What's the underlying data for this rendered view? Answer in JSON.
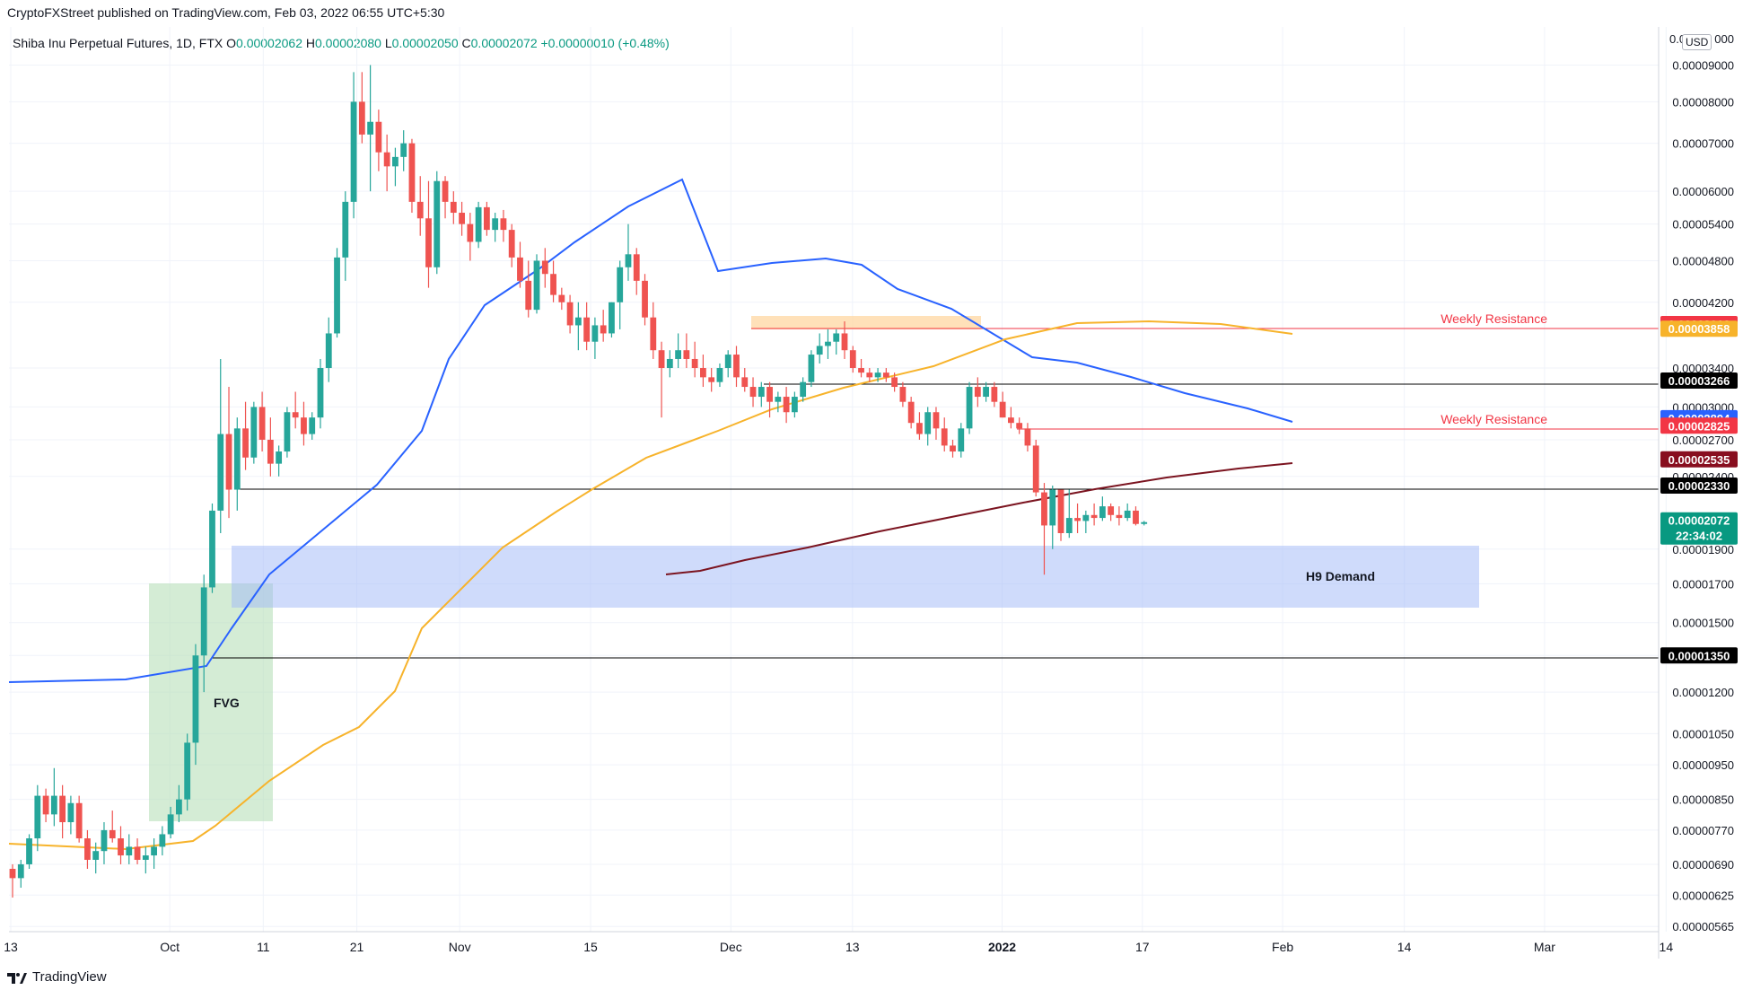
{
  "header": {
    "published": "CryptoFXStreet published on TradingView.com, Feb 03, 2022 06:55 UTC+5:30"
  },
  "legend": {
    "symbol": "Shiba Inu Perpetual Futures, 1D, FTX",
    "o_label": "O",
    "o": "0.00002062",
    "h_label": "H",
    "h": "0.00002080",
    "l_label": "L",
    "l": "0.00002050",
    "c_label": "C",
    "c": "0.00002072",
    "change": "+0.00000010 (+0.48%)"
  },
  "currency": "USD",
  "footer": {
    "brand": "TradingView"
  },
  "chart_data": {
    "type": "candlestick",
    "scale": "log",
    "x_ticks": [
      "13",
      "Oct",
      "11",
      "21",
      "Nov",
      "15",
      "Dec",
      "13",
      "2022",
      "17",
      "Feb",
      "14",
      "Mar",
      "14"
    ],
    "y_ticks": [
      "0.00009000",
      "0.00008000",
      "0.00007000",
      "0.00006000",
      "0.00005400",
      "0.00004800",
      "0.00004200",
      "0.00003400",
      "0.00003000",
      "0.00002700",
      "0.00002400",
      "0.00001900",
      "0.00001700",
      "0.00001500",
      "0.00001350",
      "0.00001200",
      "0.00001050",
      "0.00000950",
      "0.00000850",
      "0.00000770",
      "0.00000690",
      "0.00000625",
      "0.00000565"
    ],
    "y_top_partial": "0.0",
    "y_top_suffix": "000",
    "price_tags": [
      {
        "value": "0.00003916",
        "color": "#f23645"
      },
      {
        "value": "0.00003858",
        "color": "#f7b32b"
      },
      {
        "value": "0.00003266",
        "color": "#000000"
      },
      {
        "value": "0.00002894",
        "color": "#2962ff"
      },
      {
        "value": "0.00002825",
        "color": "#f23645"
      },
      {
        "value": "0.00002535",
        "color": "#880e1f"
      },
      {
        "value": "0.00002330",
        "color": "#000000"
      },
      {
        "value": "0.00001350",
        "color": "#000000"
      }
    ],
    "last_price": {
      "value": "0.00002072",
      "countdown": "22:34:02",
      "color": "#089981"
    },
    "annotations": {
      "weekly_resistance_1": "Weekly Resistance",
      "weekly_resistance_2": "Weekly Resistance",
      "h9_demand": "H9 Demand",
      "fvg": "FVG"
    },
    "moving_averages": [
      {
        "color": "#2962ff"
      },
      {
        "color": "#f7b32b"
      },
      {
        "color": "#7b1420"
      }
    ],
    "candles": [
      [
        6.8,
        6.9,
        6.2,
        6.6
      ],
      [
        6.6,
        7.0,
        6.4,
        6.9
      ],
      [
        6.9,
        7.6,
        6.8,
        7.5
      ],
      [
        7.5,
        8.9,
        7.2,
        8.6
      ],
      [
        8.6,
        8.8,
        7.9,
        8.1
      ],
      [
        8.1,
        9.4,
        7.8,
        8.6
      ],
      [
        8.6,
        8.9,
        7.5,
        7.9
      ],
      [
        7.9,
        8.6,
        7.6,
        8.4
      ],
      [
        8.4,
        8.6,
        7.4,
        7.5
      ],
      [
        7.5,
        7.7,
        6.8,
        7.0
      ],
      [
        7.0,
        7.4,
        6.7,
        7.2
      ],
      [
        7.2,
        7.9,
        6.9,
        7.7
      ],
      [
        7.7,
        8.2,
        7.4,
        7.5
      ],
      [
        7.5,
        7.8,
        6.9,
        7.1
      ],
      [
        7.1,
        7.6,
        6.9,
        7.3
      ],
      [
        7.3,
        7.5,
        6.9,
        7.0
      ],
      [
        7.0,
        7.3,
        6.7,
        7.1
      ],
      [
        7.1,
        7.5,
        6.8,
        7.3
      ],
      [
        7.3,
        7.8,
        7.1,
        7.6
      ],
      [
        7.6,
        8.3,
        7.5,
        8.1
      ],
      [
        8.1,
        8.9,
        7.9,
        8.5
      ],
      [
        8.5,
        10.5,
        8.2,
        10.2
      ],
      [
        10.2,
        14.0,
        9.5,
        13.5
      ],
      [
        13.5,
        17.5,
        12.0,
        16.8
      ],
      [
        16.8,
        22.0,
        16.5,
        21.5
      ],
      [
        21.5,
        35.0,
        20.0,
        27.5
      ],
      [
        27.5,
        32.0,
        21.0,
        23.0
      ],
      [
        23.0,
        29.0,
        21.5,
        28.0
      ],
      [
        28.0,
        30.5,
        24.5,
        25.5
      ],
      [
        25.5,
        30.5,
        25.0,
        30.0
      ],
      [
        30.0,
        31.5,
        26.0,
        27.0
      ],
      [
        27.0,
        29.0,
        24.0,
        25.0
      ],
      [
        25.0,
        26.5,
        24.0,
        26.0
      ],
      [
        26.0,
        30.0,
        25.5,
        29.5
      ],
      [
        29.5,
        31.5,
        28.0,
        29.0
      ],
      [
        29.0,
        30.5,
        26.5,
        27.5
      ],
      [
        27.5,
        29.5,
        27.0,
        29.0
      ],
      [
        29.0,
        35.0,
        28.0,
        34.0
      ],
      [
        34.0,
        40.0,
        32.5,
        38.0
      ],
      [
        38.0,
        50.0,
        37.5,
        48.5
      ],
      [
        48.5,
        60.0,
        45.0,
        58.0
      ],
      [
        58.0,
        88.0,
        55.0,
        80.0
      ],
      [
        80.0,
        88.0,
        70.0,
        72.0
      ],
      [
        72.0,
        90.0,
        60.0,
        75.0
      ],
      [
        75.0,
        78.0,
        64.0,
        68.0
      ],
      [
        68.0,
        72.0,
        60.0,
        65.0
      ],
      [
        65.0,
        69.0,
        61.0,
        67.0
      ],
      [
        67.0,
        73.0,
        64.0,
        70.0
      ],
      [
        70.0,
        71.0,
        56.0,
        58.0
      ],
      [
        58.0,
        63.0,
        52.0,
        55.0
      ],
      [
        55.0,
        62.0,
        44.0,
        47.0
      ],
      [
        47.0,
        64.0,
        46.0,
        62.0
      ],
      [
        62.0,
        63.0,
        55.0,
        58.0
      ],
      [
        58.0,
        60.0,
        54.0,
        56.0
      ],
      [
        56.0,
        58.0,
        52.0,
        54.0
      ],
      [
        54.0,
        56.0,
        48.0,
        51.0
      ],
      [
        51.0,
        58.0,
        50.0,
        57.0
      ],
      [
        57.0,
        58.0,
        52.0,
        53.0
      ],
      [
        53.0,
        56.0,
        51.0,
        55.0
      ],
      [
        55.0,
        56.5,
        51.0,
        53.0
      ],
      [
        53.0,
        54.0,
        47.0,
        48.5
      ],
      [
        48.5,
        51.0,
        44.0,
        45.0
      ],
      [
        45.0,
        48.0,
        40.0,
        41.0
      ],
      [
        41.0,
        49.0,
        40.5,
        48.0
      ],
      [
        48.0,
        50.0,
        44.0,
        46.0
      ],
      [
        46.0,
        48.0,
        42.0,
        43.0
      ],
      [
        43.0,
        44.0,
        41.0,
        42.0
      ],
      [
        42.0,
        43.0,
        38.0,
        39.0
      ],
      [
        39.0,
        42.0,
        36.0,
        40.0
      ],
      [
        40.0,
        42.0,
        36.0,
        37.0
      ],
      [
        37.0,
        40.0,
        35.0,
        39.0
      ],
      [
        39.0,
        41.0,
        37.0,
        38.0
      ],
      [
        38.0,
        42.0,
        37.5,
        42.0
      ],
      [
        42.0,
        48.0,
        38.5,
        47.0
      ],
      [
        47.0,
        54.0,
        45.0,
        49.0
      ],
      [
        49.0,
        50.0,
        43.0,
        45.0
      ],
      [
        45.0,
        46.0,
        39.0,
        40.0
      ],
      [
        40.0,
        42.0,
        35.0,
        36.0
      ],
      [
        36.0,
        37.0,
        29.0,
        34.0
      ],
      [
        34.0,
        36.0,
        33.0,
        35.0
      ],
      [
        35.0,
        38.0,
        34.0,
        36.0
      ],
      [
        36.0,
        38.0,
        34.0,
        35.0
      ],
      [
        35.0,
        37.0,
        33.0,
        34.0
      ],
      [
        34.0,
        35.5,
        32.0,
        33.0
      ],
      [
        33.0,
        34.0,
        31.5,
        32.5
      ],
      [
        32.5,
        34.5,
        32.0,
        34.0
      ],
      [
        34.0,
        36.0,
        33.0,
        35.5
      ],
      [
        35.5,
        36.5,
        32.0,
        33.0
      ],
      [
        33.0,
        34.0,
        31.5,
        32.0
      ],
      [
        32.0,
        33.0,
        30.0,
        31.0
      ],
      [
        31.0,
        32.5,
        30.0,
        32.0
      ],
      [
        32.0,
        32.5,
        29.0,
        30.5
      ],
      [
        30.5,
        31.5,
        29.5,
        31.0
      ],
      [
        31.0,
        32.0,
        28.5,
        29.5
      ],
      [
        29.5,
        31.5,
        29.0,
        31.0
      ],
      [
        31.0,
        33.0,
        30.5,
        32.5
      ],
      [
        32.5,
        36.0,
        32.0,
        35.5
      ],
      [
        35.5,
        38.0,
        34.5,
        36.5
      ],
      [
        36.5,
        38.5,
        35.0,
        37.0
      ],
      [
        37.0,
        38.5,
        35.5,
        38.0
      ],
      [
        38.0,
        39.5,
        35.0,
        36.0
      ],
      [
        36.0,
        36.5,
        33.5,
        34.0
      ],
      [
        34.0,
        35.0,
        33.0,
        33.5
      ],
      [
        33.5,
        34.0,
        32.5,
        33.0
      ],
      [
        33.0,
        34.0,
        32.5,
        33.5
      ],
      [
        33.5,
        34.0,
        32.5,
        33.0
      ],
      [
        33.0,
        33.5,
        31.5,
        32.0
      ],
      [
        32.0,
        32.5,
        30.0,
        30.5
      ],
      [
        30.5,
        31.0,
        28.0,
        28.5
      ],
      [
        28.5,
        29.5,
        27.0,
        27.5
      ],
      [
        27.5,
        30.0,
        26.5,
        29.5
      ],
      [
        29.5,
        30.0,
        27.0,
        28.0
      ],
      [
        28.0,
        29.0,
        26.0,
        26.5
      ],
      [
        26.5,
        27.0,
        25.5,
        26.0
      ],
      [
        26.0,
        28.5,
        25.5,
        28.0
      ],
      [
        28.0,
        32.5,
        27.5,
        32.0
      ],
      [
        32.0,
        33.0,
        30.0,
        31.0
      ],
      [
        31.0,
        32.5,
        30.5,
        32.0
      ],
      [
        32.0,
        32.5,
        30.0,
        30.5
      ],
      [
        30.5,
        31.5,
        29.0,
        29.0
      ],
      [
        29.0,
        30.0,
        28.0,
        28.5
      ],
      [
        28.5,
        29.0,
        27.5,
        28.0
      ],
      [
        28.0,
        28.5,
        26.0,
        26.5
      ],
      [
        26.5,
        27.0,
        22.5,
        22.8
      ],
      [
        22.8,
        23.5,
        17.5,
        20.5
      ],
      [
        20.5,
        23.3,
        19.0,
        23.0
      ],
      [
        23.0,
        23.0,
        19.5,
        20.0
      ],
      [
        20.0,
        23.0,
        19.7,
        21.0
      ],
      [
        21.0,
        22.0,
        20.0,
        20.8
      ],
      [
        20.8,
        21.5,
        20.0,
        21.2
      ],
      [
        21.2,
        22.0,
        20.5,
        21.0
      ],
      [
        21.0,
        22.5,
        20.8,
        21.8
      ],
      [
        21.8,
        22.0,
        20.8,
        21.2
      ],
      [
        21.2,
        21.8,
        20.5,
        21.0
      ],
      [
        21.0,
        22.0,
        20.8,
        21.5
      ],
      [
        21.5,
        21.8,
        20.5,
        20.6
      ],
      [
        20.6,
        20.8,
        20.5,
        20.72
      ]
    ]
  }
}
